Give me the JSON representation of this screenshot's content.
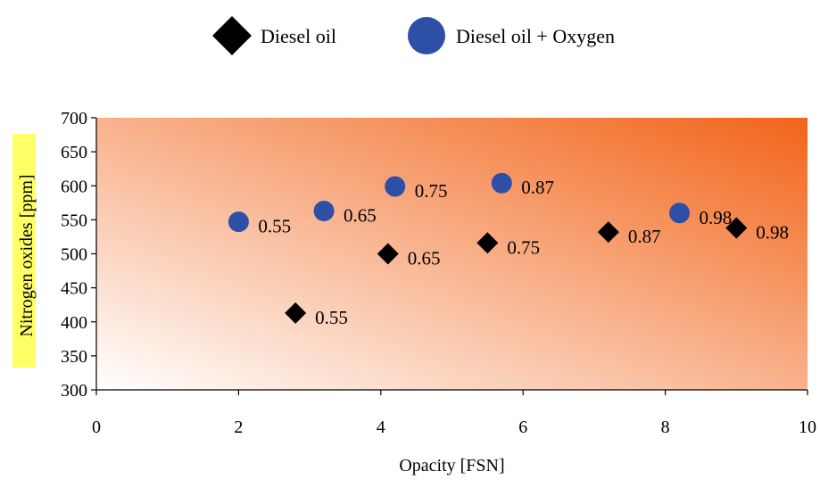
{
  "chart_data": {
    "type": "scatter",
    "title": "",
    "xlabel": "Opacity [FSN]",
    "ylabel": "Nitrogen oxides [ppm]",
    "xlim": [
      0,
      10
    ],
    "ylim": [
      300,
      700
    ],
    "x_ticks": [
      0,
      2,
      4,
      6,
      8,
      10
    ],
    "y_ticks": [
      300,
      350,
      400,
      450,
      500,
      550,
      600,
      650,
      700
    ],
    "grid": false,
    "legend_position": "top-center",
    "background": "gradient-white-to-orange",
    "series": [
      {
        "name": "Diesel oil",
        "marker": "diamond",
        "color": "#000000",
        "points": [
          {
            "x": 2.8,
            "y": 413,
            "label": "0.55"
          },
          {
            "x": 4.1,
            "y": 500,
            "label": "0.65"
          },
          {
            "x": 5.5,
            "y": 516,
            "label": "0.75"
          },
          {
            "x": 7.2,
            "y": 532,
            "label": "0.87"
          },
          {
            "x": 9.0,
            "y": 538,
            "label": "0.98"
          }
        ]
      },
      {
        "name": "Diesel oil + Oxygen",
        "marker": "circle",
        "color": "#2E4FA6",
        "points": [
          {
            "x": 2.0,
            "y": 547,
            "label": "0.55"
          },
          {
            "x": 3.2,
            "y": 563,
            "label": "0.65"
          },
          {
            "x": 4.2,
            "y": 599,
            "label": "0.75"
          },
          {
            "x": 5.7,
            "y": 604,
            "label": "0.87"
          },
          {
            "x": 8.2,
            "y": 560,
            "label": "0.98"
          }
        ]
      }
    ]
  },
  "colors": {
    "gradient_start": "#ffffff",
    "gradient_end": "#F26419",
    "ylabel_highlight": "#FFFF66"
  }
}
